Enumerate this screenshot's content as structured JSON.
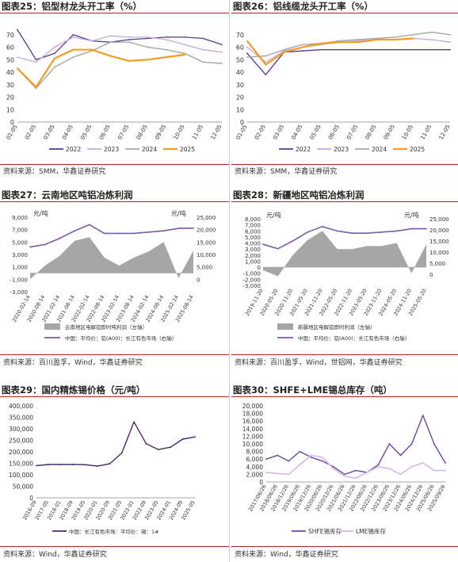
{
  "colors": {
    "title_rule": "#b22222",
    "c2022": "#5a3a8a",
    "c2023": "#c8a8dc",
    "c2024": "#a6a6a6",
    "c2025": "#f59a23",
    "area_gray": "#a6a6a6",
    "line_purple": "#7b5aa6"
  },
  "panels": [
    {
      "title": "图表25：铝型材龙头开工率（%）",
      "source": "资料来源：SMM，华鑫证券研究"
    },
    {
      "title": "图表26：铝线缆龙头开工率（%）",
      "source": "资料来源：SMM，华鑫证券研究"
    },
    {
      "title": "图表27：云南地区吨铝冶炼利润",
      "source": "资料来源：百川盈孚，Wind，华鑫证券研究"
    },
    {
      "title": "图表28：新疆地区吨铝冶炼利润",
      "source": "资料来源：百川盈孚，Wind，世铝网，华鑫证券研究"
    },
    {
      "title": "图表29：国内精炼锡价格（元/吨）",
      "source": "资料来源：Wind，华鑫证券研究"
    },
    {
      "title": "图表30：SHFE+LME锡总库存（吨）",
      "source": "资料来源：Wind，华鑫证券研究"
    }
  ],
  "chart_data": [
    {
      "type": "line",
      "x": [
        "01-05",
        "02-05",
        "03-05",
        "04-05",
        "05-05",
        "06-05",
        "07-05",
        "08-05",
        "09-05",
        "10-05",
        "11-05",
        "12-05"
      ],
      "ylim": [
        0,
        80
      ],
      "yticks": [
        0,
        10,
        20,
        30,
        40,
        50,
        60,
        70
      ],
      "series": [
        {
          "name": "2022",
          "values": [
            74,
            50,
            55,
            70,
            65,
            64,
            66,
            67,
            68,
            68,
            67,
            62
          ]
        },
        {
          "name": "2023",
          "values": [
            52,
            48,
            60,
            68,
            65,
            69,
            68,
            68,
            66,
            62,
            58,
            56
          ]
        },
        {
          "name": "2024",
          "values": [
            43,
            27,
            44,
            52,
            57,
            64,
            64,
            60,
            58,
            55,
            48,
            47
          ]
        },
        {
          "name": "2025",
          "values": [
            43,
            28,
            51,
            58,
            58,
            53,
            49,
            50,
            52,
            54,
            null,
            null
          ]
        }
      ]
    },
    {
      "type": "line",
      "x": [
        "01-05",
        "02-05",
        "03-05",
        "04-05",
        "05-05",
        "06-05",
        "07-05",
        "08-05",
        "09-05",
        "10-05",
        "11-05",
        "12-05"
      ],
      "ylim": [
        0,
        80
      ],
      "yticks": [
        0,
        10,
        20,
        30,
        40,
        50,
        60,
        70
      ],
      "series": [
        {
          "name": "2022",
          "values": [
            55,
            38,
            56,
            57,
            58,
            58,
            58,
            58,
            58,
            58,
            58,
            58
          ]
        },
        {
          "name": "2023",
          "values": [
            60,
            48,
            57,
            60,
            62,
            64,
            65,
            66,
            66,
            67,
            66,
            64
          ]
        },
        {
          "name": "2024",
          "values": [
            52,
            53,
            58,
            62,
            63,
            65,
            66,
            67,
            68,
            70,
            72,
            70
          ]
        },
        {
          "name": "2025",
          "values": [
            65,
            46,
            56,
            60,
            63,
            64,
            64,
            66,
            66,
            67,
            null,
            null
          ]
        }
      ]
    },
    {
      "type": "area",
      "x": [
        "2020-02-14",
        "2020-08-14",
        "2021-02-14",
        "2021-08-14",
        "2022-02-14",
        "2022-08-14",
        "2023-02-14",
        "2023-08-14",
        "2024-02-14",
        "2024-08-14",
        "2025-02-14",
        "2025-08-14"
      ],
      "ylim_left": [
        -3000,
        9000
      ],
      "yticks_left": [
        -3000,
        -1000,
        1000,
        3000,
        5000,
        7000,
        9000
      ],
      "ylim_right": [
        -5000,
        25000
      ],
      "yticks_right": [
        0,
        5000,
        10000,
        15000,
        20000,
        25000
      ],
      "left_unit": "元/吨",
      "right_unit": "元/吨",
      "series": [
        {
          "name": "云南地区电解铝即时吨利润（左轴）",
          "values": [
            -1000,
            1200,
            2800,
            5200,
            5800,
            2500,
            1200,
            2500,
            3500,
            5000,
            -800,
            3600
          ]
        },
        {
          "name": "中国：平均价：铝(A00)：长江有色市场（右轴）",
          "values": [
            13000,
            14000,
            16500,
            19500,
            22000,
            18500,
            18500,
            18500,
            19000,
            19500,
            20500,
            20600
          ]
        }
      ]
    },
    {
      "type": "area",
      "x": [
        "2019-11-20",
        "2020-05-20",
        "2020-11-20",
        "2021-05-20",
        "2021-11-20",
        "2022-05-20",
        "2022-11-20",
        "2023-05-20",
        "2023-11-20",
        "2024-05-20",
        "2024-11-20",
        "2025-05-20"
      ],
      "ylim_left": [
        -3000,
        8000
      ],
      "yticks_left": [
        -3000,
        -2000,
        -1000,
        0,
        1000,
        2000,
        3000,
        4000,
        5000,
        6000,
        7000,
        8000
      ],
      "ylim_right": [
        -5000,
        25000
      ],
      "yticks_right": [
        0,
        5000,
        10000,
        15000,
        20000,
        25000
      ],
      "left_unit": "元/吨",
      "right_unit": "元/吨",
      "series": [
        {
          "name": "新疆地区电解铝即时利润（左轴）",
          "values": [
            -500,
            -1500,
            2000,
            4500,
            6000,
            3000,
            3000,
            3500,
            3500,
            4000,
            -1000,
            3800
          ]
        },
        {
          "name": "中国：平均价：铝(A00)：长江有色市场（右轴）",
          "values": [
            13500,
            11500,
            15000,
            19000,
            21500,
            19500,
            18500,
            18500,
            19000,
            19500,
            20500,
            20500
          ]
        }
      ]
    },
    {
      "type": "line",
      "x": [
        "2016-09",
        "2017-05",
        "2018-01",
        "2018-09",
        "2019-05",
        "2020-01",
        "2020-09",
        "2021-05",
        "2022-01",
        "2022-09",
        "2023-05",
        "2024-01",
        "2024-09",
        "2025-05"
      ],
      "ylim": [
        0,
        400000
      ],
      "yticks": [
        0,
        50000,
        100000,
        150000,
        200000,
        250000,
        300000,
        350000,
        400000
      ],
      "series": [
        {
          "name": "中国：长江有色市场：平均价：锡：1#",
          "values": [
            140000,
            145000,
            145000,
            145000,
            144000,
            138000,
            148000,
            195000,
            330000,
            235000,
            210000,
            220000,
            255000,
            265000
          ]
        }
      ]
    },
    {
      "type": "line",
      "x": [
        "2017/06/26",
        "2018/06/26",
        "2018/12/26",
        "2019/06/26",
        "2019/12/26",
        "2020/06/26",
        "2020/12/26",
        "2021/06/26",
        "2021/12/26",
        "2022/06/26",
        "2022/12/26",
        "2023/06/26",
        "2023/12/26",
        "2024/06/26",
        "2024/12/26",
        "2025/06/26",
        "2025/09/26"
      ],
      "ylim": [
        0,
        20000
      ],
      "yticks": [
        0,
        2000,
        4000,
        6000,
        8000,
        10000,
        12000,
        14000,
        16000,
        18000,
        20000
      ],
      "series": [
        {
          "name": "SHFE锡库存",
          "values": [
            6000,
            7000,
            5500,
            8000,
            6500,
            5500,
            4000,
            2000,
            3000,
            2500,
            4500,
            10000,
            7000,
            10000,
            17500,
            10000,
            5000
          ]
        },
        {
          "name": "LME锡库存",
          "values": [
            2500,
            2200,
            2000,
            4500,
            7000,
            6500,
            3500,
            1500,
            1000,
            2500,
            4000,
            3500,
            2000,
            4000,
            5000,
            3000,
            3000
          ]
        }
      ]
    }
  ]
}
